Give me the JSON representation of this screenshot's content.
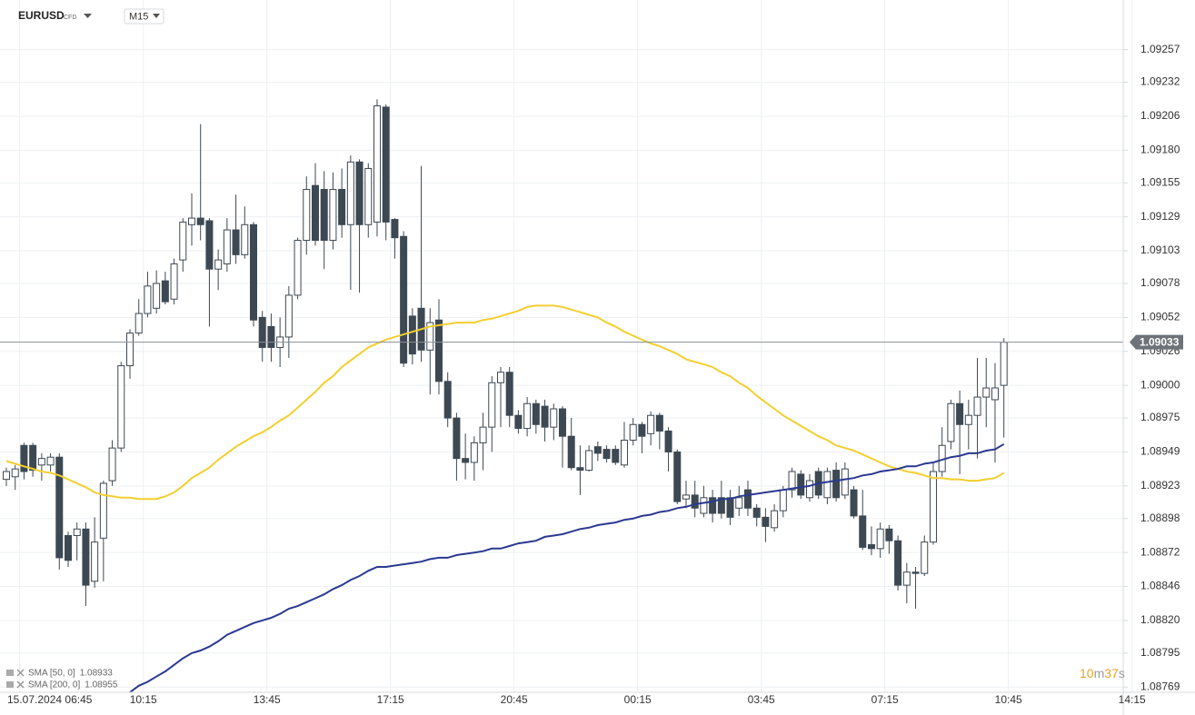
{
  "toolbar": {
    "symbol": "EURUSD",
    "instrument": "CFD",
    "timeframe": "M15"
  },
  "countdown": [
    "10",
    "m",
    "37",
    "s"
  ],
  "chart_data": {
    "type": "candlestick",
    "categories": [
      null,
      "15.07.2024 06:45",
      null,
      null,
      null,
      null,
      null,
      null,
      null,
      null,
      null,
      null,
      null,
      null,
      null,
      "10:15",
      null,
      null,
      null,
      null,
      null,
      null,
      null,
      null,
      null,
      null,
      null,
      null,
      null,
      "13:45",
      null,
      null,
      null,
      null,
      null,
      null,
      null,
      null,
      null,
      null,
      null,
      null,
      null,
      "17:15",
      null,
      null,
      null,
      null,
      null,
      null,
      null,
      null,
      null,
      null,
      null,
      null,
      null,
      "20:45",
      null,
      null,
      null,
      null,
      null,
      null,
      null,
      null,
      null,
      null,
      null,
      null,
      null,
      "00:15",
      null,
      null,
      null,
      null,
      null,
      null,
      null,
      null,
      null,
      null,
      null,
      null,
      null,
      "03:45",
      null,
      null,
      null,
      null,
      null,
      null,
      null,
      null,
      null,
      null,
      null,
      null,
      null,
      "07:15",
      null,
      null,
      null,
      null,
      null,
      null,
      null,
      null,
      null,
      null,
      null,
      null,
      null,
      "10:45",
      null,
      null,
      null,
      null,
      null,
      null,
      null,
      null,
      null,
      null,
      null,
      null,
      null,
      "14:15"
    ],
    "open": [
      1.08928,
      1.0893,
      1.08954,
      1.08954,
      1.08939,
      1.08939,
      1.08945,
      1.08885,
      1.08885,
      1.0889,
      1.0885,
      1.08883,
      1.08927,
      1.08952,
      1.09015,
      1.0904,
      1.09055,
      1.09059,
      1.0908,
      1.09066,
      1.09096,
      1.09123,
      1.09128,
      1.09126,
      1.09089,
      1.09093,
      1.09119,
      1.091,
      1.09123,
      1.09052,
      1.09045,
      1.09029,
      1.09037,
      1.09069,
      1.09111,
      1.09153,
      1.0915,
      1.09111,
      1.0915,
      1.09123,
      1.09171,
      1.09123,
      1.09125,
      1.09213,
      1.09127,
      1.09114,
      1.09053,
      1.09059,
      1.09027,
      1.0905,
      1.09003,
      1.08975,
      1.08944,
      1.08941,
      1.08956,
      1.08968,
      1.09002,
      1.0901,
      1.08977,
      1.08967,
      1.08986,
      1.08984,
      1.08968,
      1.08982,
      1.08961,
      1.08937,
      1.08935,
      1.08953,
      1.08951,
      1.08951,
      1.08939,
      1.08958,
      1.0897,
      1.08963,
      1.08977,
      1.08965,
      1.08949,
      1.08913,
      1.08916,
      1.08902,
      1.08914,
      1.08914,
      1.08914,
      1.08906,
      1.0892,
      1.08906,
      1.08899,
      1.08891,
      1.08904,
      1.0892,
      1.08932,
      1.08914,
      1.08934,
      1.08914,
      1.08935,
      1.08916,
      1.0892,
      1.089,
      1.08878,
      1.08875,
      1.0889,
      1.08881,
      1.08847,
      1.08857,
      1.08856,
      1.0888,
      1.08934,
      1.08957,
      1.08986,
      1.0897,
      1.08977,
      1.08991,
      1.08989,
      1.09,
      null,
      null,
      null,
      null,
      null,
      null,
      null,
      null,
      null,
      null,
      null,
      null,
      null,
      null
    ],
    "high": [
      1.08937,
      1.08939,
      1.08956,
      1.08956,
      1.08948,
      1.08948,
      1.08948,
      1.08888,
      1.08895,
      1.08895,
      1.08899,
      1.08927,
      1.08958,
      1.09018,
      1.09043,
      1.09066,
      1.09087,
      1.09088,
      1.09087,
      1.09097,
      1.09128,
      1.09147,
      1.092,
      1.09128,
      1.09104,
      1.09128,
      1.09146,
      1.09137,
      1.09125,
      1.09057,
      1.09055,
      1.09052,
      1.09076,
      1.09113,
      1.0916,
      1.0917,
      1.09164,
      1.09163,
      1.09166,
      1.09176,
      1.09173,
      1.0917,
      1.09219,
      1.09215,
      1.09128,
      1.09118,
      1.09059,
      1.09168,
      1.09059,
      1.09066,
      1.0901,
      1.08979,
      1.08963,
      1.08961,
      1.08979,
      1.09007,
      1.09014,
      1.09014,
      1.08981,
      1.08991,
      1.08989,
      1.08989,
      1.08986,
      1.08984,
      1.08975,
      1.08954,
      1.08954,
      1.08957,
      1.08954,
      1.08954,
      1.08972,
      1.08975,
      1.08972,
      1.0898,
      1.08979,
      1.08968,
      1.08951,
      1.08927,
      1.08927,
      1.08923,
      1.0892,
      1.08927,
      1.0892,
      1.08923,
      1.08927,
      1.08909,
      1.08906,
      1.08909,
      1.08923,
      1.08937,
      1.08935,
      1.08932,
      1.08937,
      1.08937,
      1.08941,
      1.08941,
      1.08923,
      1.0892,
      1.08892,
      1.08895,
      1.08893,
      1.08885,
      1.08864,
      1.08861,
      1.08885,
      1.08941,
      1.08968,
      1.08989,
      1.08996,
      1.08989,
      1.09021,
      1.09021,
      1.09017,
      1.09036,
      null,
      null,
      null,
      null,
      null,
      null,
      null,
      null,
      null,
      null,
      null,
      null,
      null,
      null
    ],
    "low": [
      1.08923,
      1.0892,
      1.08928,
      1.0893,
      1.08927,
      1.08934,
      1.08859,
      1.08861,
      1.08866,
      1.08831,
      1.08845,
      1.0885,
      1.08923,
      1.08949,
      1.09005,
      1.09038,
      1.09052,
      1.09055,
      1.09062,
      1.09062,
      1.09087,
      1.09107,
      1.09111,
      1.09045,
      1.09073,
      1.09087,
      1.09093,
      1.09097,
      1.09045,
      1.09018,
      1.09018,
      1.09014,
      1.09021,
      1.09066,
      1.091,
      1.09107,
      1.09089,
      1.09104,
      1.09113,
      1.09073,
      1.09071,
      1.09113,
      1.09114,
      1.09111,
      1.09097,
      1.09014,
      1.09016,
      1.09018,
      1.08993,
      1.08993,
      1.08968,
      1.08927,
      1.08928,
      1.08927,
      1.08935,
      1.08949,
      1.08968,
      1.08968,
      1.08963,
      1.08961,
      1.08963,
      1.08957,
      1.08958,
      1.08937,
      1.08935,
      1.08916,
      1.08934,
      1.08942,
      1.08941,
      1.08939,
      1.08937,
      1.08954,
      1.08948,
      1.08954,
      1.08951,
      1.08934,
      1.08909,
      1.08906,
      1.08899,
      1.08899,
      1.08895,
      1.08898,
      1.08893,
      1.089,
      1.089,
      1.08892,
      1.0888,
      1.08888,
      1.08899,
      1.08914,
      1.08913,
      1.08911,
      1.08913,
      1.08909,
      1.08911,
      1.08913,
      1.08898,
      1.08874,
      1.0887,
      1.08868,
      1.08871,
      1.08843,
      1.08833,
      1.08829,
      1.08854,
      1.08878,
      1.0893,
      1.08951,
      1.08932,
      1.08951,
      1.08944,
      1.08968,
      1.08941,
      1.0896,
      null,
      null,
      null,
      null,
      null,
      null,
      null,
      null,
      null,
      null,
      null,
      null,
      null,
      null
    ],
    "close": [
      1.08934,
      1.08936,
      1.08934,
      1.08935,
      1.08944,
      1.08945,
      1.08868,
      1.08866,
      1.0889,
      1.08847,
      1.0888,
      1.08925,
      1.08952,
      1.09015,
      1.0904,
      1.09055,
      1.09076,
      1.09078,
      1.09064,
      1.09093,
      1.09125,
      1.09128,
      1.09123,
      1.09089,
      1.09096,
      1.09119,
      1.091,
      1.09123,
      1.0905,
      1.09029,
      1.09029,
      1.09037,
      1.09069,
      1.09111,
      1.0915,
      1.09111,
      1.09111,
      1.0915,
      1.09123,
      1.09171,
      1.09123,
      1.09166,
      1.09214,
      1.09125,
      1.09113,
      1.09017,
      1.09024,
      1.09027,
      1.09048,
      1.09003,
      1.08975,
      1.08944,
      1.08941,
      1.08956,
      1.08968,
      1.09002,
      1.0901,
      1.08977,
      1.08967,
      1.08986,
      1.0897,
      1.08968,
      1.08982,
      1.08961,
      1.08937,
      1.08935,
      1.0895,
      1.08948,
      1.08944,
      1.08941,
      1.08958,
      1.0897,
      1.08961,
      1.08977,
      1.08965,
      1.08949,
      1.08911,
      1.08916,
      1.08906,
      1.08914,
      1.08902,
      1.08902,
      1.08899,
      1.08914,
      1.08906,
      1.08899,
      1.08892,
      1.08904,
      1.0892,
      1.08934,
      1.08916,
      1.08927,
      1.08916,
      1.08934,
      1.08914,
      1.08936,
      1.089,
      1.08876,
      1.08875,
      1.0889,
      1.08881,
      1.08847,
      1.08857,
      1.08856,
      1.0888,
      1.08934,
      1.08954,
      1.08986,
      1.0897,
      1.08977,
      1.08991,
      1.08998,
      1.08998,
      1.09033,
      null,
      null,
      null,
      null,
      null,
      null,
      null,
      null,
      null,
      null,
      null,
      null,
      null,
      null
    ],
    "up_color": "#ffffff",
    "down_color": "#3d4852",
    "series": [
      {
        "name": "SMA [50, 0]",
        "color": "#f3cf2f",
        "values": [
          1.08942,
          1.0894,
          1.08938,
          1.08936,
          1.08934,
          1.08933,
          1.08931,
          1.08928,
          1.08925,
          1.08922,
          1.08918,
          1.08916,
          1.08915,
          1.08914,
          1.08914,
          1.08913,
          1.08913,
          1.08913,
          1.08915,
          1.08918,
          1.08923,
          1.08929,
          1.08933,
          1.08937,
          1.08943,
          1.08948,
          1.08953,
          1.08957,
          1.08961,
          1.08964,
          1.08968,
          1.08973,
          1.08977,
          1.08983,
          1.08989,
          1.08995,
          1.09002,
          1.09007,
          1.09014,
          1.09019,
          1.09024,
          1.09029,
          1.09032,
          1.09035,
          1.09037,
          1.09039,
          1.09041,
          1.09043,
          1.09045,
          1.09046,
          1.09047,
          1.09048,
          1.09048,
          1.09048,
          1.0905,
          1.09051,
          1.09053,
          1.09055,
          1.09057,
          1.0906,
          1.09061,
          1.09061,
          1.09061,
          1.0906,
          1.09058,
          1.09056,
          1.09054,
          1.09052,
          1.09048,
          1.09045,
          1.09041,
          1.09038,
          1.09035,
          1.09032,
          1.0903,
          1.09027,
          1.09024,
          1.0902,
          1.09018,
          1.09016,
          1.09014,
          1.0901,
          1.09007,
          1.09002,
          1.08998,
          1.08992,
          1.08987,
          1.08982,
          1.08977,
          1.08973,
          1.08969,
          1.08965,
          1.08961,
          1.08958,
          1.08954,
          1.08952,
          1.0895,
          1.08947,
          1.08944,
          1.08941,
          1.08938,
          1.08936,
          1.08934,
          1.08933,
          1.08931,
          1.08929,
          1.08929,
          1.08928,
          1.08928,
          1.08927,
          1.08927,
          1.08928,
          1.08929,
          1.08933,
          null,
          null,
          null,
          null,
          null,
          null,
          null,
          null,
          null,
          null,
          null,
          null,
          null,
          null
        ]
      },
      {
        "name": "SMA [200, 0]",
        "color": "#2b3990",
        "values": [
          null,
          null,
          null,
          null,
          null,
          null,
          null,
          null,
          null,
          null,
          null,
          null,
          null,
          null,
          1.08765,
          1.0877,
          1.08773,
          1.08777,
          1.08781,
          1.08786,
          1.08791,
          1.08795,
          1.08797,
          1.088,
          1.08804,
          1.08809,
          1.08812,
          1.08815,
          1.08818,
          1.0882,
          1.08822,
          1.08825,
          1.08829,
          1.08831,
          1.08834,
          1.08837,
          1.0884,
          1.08844,
          1.08847,
          1.08851,
          1.08854,
          1.08858,
          1.08861,
          1.08861,
          1.08862,
          1.08863,
          1.08864,
          1.08865,
          1.08867,
          1.08868,
          1.08868,
          1.0887,
          1.08871,
          1.08872,
          1.08873,
          1.08875,
          1.08875,
          1.08877,
          1.08879,
          1.0888,
          1.08881,
          1.08884,
          1.08885,
          1.08886,
          1.08888,
          1.0889,
          1.08891,
          1.08893,
          1.08894,
          1.08895,
          1.08897,
          1.08898,
          1.089,
          1.08901,
          1.08903,
          1.08904,
          1.08906,
          1.08907,
          1.08909,
          1.0891,
          1.08911,
          1.08913,
          1.08913,
          1.08915,
          1.08916,
          1.08917,
          1.08918,
          1.08919,
          1.0892,
          1.08921,
          1.08922,
          1.08923,
          1.08925,
          1.08926,
          1.08927,
          1.08928,
          1.08929,
          1.08931,
          1.08932,
          1.08934,
          1.08935,
          1.08936,
          1.08938,
          1.08938,
          1.0894,
          1.08941,
          1.08943,
          1.08945,
          1.08946,
          1.08948,
          1.08948,
          1.0895,
          1.08951,
          1.08955,
          null,
          null,
          null,
          null,
          null,
          null,
          null,
          null,
          null,
          null,
          null,
          null,
          null,
          null
        ]
      }
    ],
    "ylim": [
      1.08765,
      1.09295
    ],
    "yticks": [
      1.09257,
      1.09232,
      1.09206,
      {
        "value": 1.0918,
        "label": "1.09180"
      },
      1.09155,
      1.09129,
      1.09103,
      1.09078,
      1.09052,
      1.09026,
      {
        "value": 1.09,
        "label": "1.09000"
      },
      1.08975,
      1.08949,
      1.08923,
      1.08898,
      1.08872,
      1.08846,
      {
        "value": 1.0882,
        "label": "1.08820"
      },
      1.08795,
      1.08769
    ],
    "grid": true
  }
}
